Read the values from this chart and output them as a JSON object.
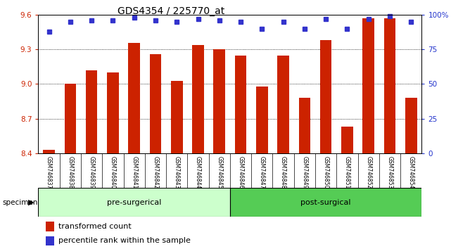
{
  "title": "GDS4354 / 225770_at",
  "categories": [
    "GSM746837",
    "GSM746838",
    "GSM746839",
    "GSM746840",
    "GSM746841",
    "GSM746842",
    "GSM746843",
    "GSM746844",
    "GSM746845",
    "GSM746846",
    "GSM746847",
    "GSM746848",
    "GSM746849",
    "GSM746850",
    "GSM746851",
    "GSM746852",
    "GSM746853",
    "GSM746854"
  ],
  "bar_values": [
    8.43,
    9.0,
    9.12,
    9.1,
    9.36,
    9.26,
    9.03,
    9.34,
    9.3,
    9.25,
    8.98,
    9.25,
    8.88,
    9.38,
    8.63,
    9.57,
    9.57,
    8.88
  ],
  "percentile_values": [
    88,
    95,
    96,
    96,
    98,
    96,
    95,
    97,
    96,
    95,
    90,
    95,
    90,
    97,
    90,
    97,
    99,
    95
  ],
  "bar_color": "#cc2200",
  "percentile_color": "#3333cc",
  "ylim_left": [
    8.4,
    9.6
  ],
  "ylim_right": [
    0,
    100
  ],
  "yticks_left": [
    8.4,
    8.7,
    9.0,
    9.3,
    9.6
  ],
  "yticks_right": [
    0,
    25,
    50,
    75,
    100
  ],
  "ytick_labels_right": [
    "0",
    "25",
    "50",
    "75",
    "100%"
  ],
  "grid_color": "black",
  "pre_surgical_count": 9,
  "post_surgical_count": 9,
  "pre_color": "#ccffcc",
  "post_color": "#55cc55",
  "specimen_label": "specimen",
  "pre_label": "pre-surgerical",
  "post_label": "post-surgical",
  "legend_bar_label": "transformed count",
  "legend_pct_label": "percentile rank within the sample",
  "xlabel_color": "#cc2200",
  "ylabel_right_color": "#2233cc",
  "title_fontsize": 10,
  "tick_fontsize": 7.5,
  "bar_width": 0.55,
  "xlab_bg": "#d8d8d8"
}
